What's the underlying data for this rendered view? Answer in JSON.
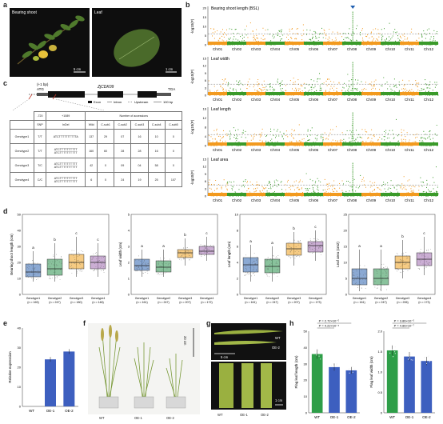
{
  "panels": {
    "a": "a",
    "b": "b",
    "c": "c",
    "d": "d",
    "e": "e",
    "f": "f",
    "g": "g",
    "h": "h"
  },
  "a": {
    "photo1_label": "Bearing shoot",
    "photo2_label": "Leaf",
    "scale1": "5 cm",
    "scale2": "1 cm",
    "colors": {
      "background": "#111111",
      "leaf": "#4f7a2c",
      "fruit": "#e8c23a"
    }
  },
  "b": {
    "chromosomes": [
      "Chr01",
      "Chr02",
      "Chr03",
      "Chr04",
      "Chr05",
      "Chr06",
      "Chr07",
      "Chr08",
      "Chr09",
      "Chr10",
      "Chr11",
      "Chr12"
    ],
    "ylabel": "-log10(P)",
    "marker_icon": "triangle-down-icon",
    "colors": {
      "odd": "#f29a1f",
      "even": "#3a9a2a",
      "marker": "#1f5fb0"
    },
    "tracks": [
      {
        "title": "Bearing shoot length (BSL)",
        "yticks": [
          "0",
          "5",
          "10",
          "15",
          "20"
        ]
      },
      {
        "title": "Leaf width",
        "yticks": [
          "0",
          "3",
          "6",
          "9",
          "12",
          "15"
        ]
      },
      {
        "title": "Leaf length",
        "yticks": [
          "0",
          "4",
          "8",
          "12",
          "16"
        ]
      },
      {
        "title": "Leaf area",
        "yticks": [
          "0",
          "3",
          "6",
          "9",
          "12",
          "15"
        ]
      }
    ]
  },
  "c": {
    "tss": "(+1 bp)",
    "atg": "ATG",
    "gene": "ZjCDK09",
    "tga": "TGA",
    "legend": {
      "exon": "Exon",
      "intron": "Intron",
      "upstream": "Upstream",
      "scale": "100 bp"
    },
    "table": {
      "top_headers": [
        "-720",
        "+1089",
        "Number of accessions"
      ],
      "headers": [
        "",
        "SNP",
        "InDel",
        "Wild",
        "C-sub1",
        "C-sub2",
        "C-sub3",
        "C-sub4",
        "C-sub5"
      ],
      "rows": [
        [
          "Genotype1",
          "T/T",
          "ATCTTTTTTTTTTA",
          "137",
          "29",
          "07",
          "16",
          "10",
          "0"
        ],
        [
          "Genotype2",
          "T/T",
          "ATCTTTTTTTTTT\nATCTTTTTTTTTT",
          "160",
          "60",
          "28",
          "28",
          "16",
          "0"
        ],
        [
          "Genotype3",
          "T/C",
          "ATCTTTTTTTTTT\nATCTTTTTTTTTT",
          "42",
          "0",
          "09",
          "04",
          "58",
          "0"
        ],
        [
          "Genotype4",
          "C/C",
          "ATCTTTTTTTTTT\nATCTTTTTTTTTT",
          "6",
          "0",
          "24",
          "19",
          "25",
          "107"
        ]
      ]
    }
  },
  "d": {
    "genotypes": [
      "Genotype1",
      "Genotype2",
      "Genotype3",
      "Genotype4"
    ],
    "colors": [
      "#3d6fb6",
      "#3b9a5a",
      "#f0a830",
      "#a878b8"
    ],
    "plots": [
      {
        "ylabel": "Bearing shoot length (cm)",
        "ylim": [
          0,
          50
        ],
        "yticks": [
          "0",
          "10",
          "20",
          "30",
          "40",
          "50"
        ],
        "letters": [
          "a",
          "b",
          "c",
          "c"
        ],
        "n": [
          "(n = 169)",
          "(n = 247)",
          "(n = 180)",
          "(n = 148)"
        ],
        "boxes": [
          [
            8,
            11,
            14,
            19,
            27
          ],
          [
            8,
            12,
            16,
            22,
            32
          ],
          [
            11,
            16,
            20,
            25,
            36
          ],
          [
            11,
            16,
            20,
            24,
            32
          ]
        ]
      },
      {
        "ylabel": "Leaf width (cm)",
        "ylim": [
          0,
          5
        ],
        "yticks": [
          "0",
          "1",
          "2",
          "3",
          "4",
          "5"
        ],
        "letters": [
          "a",
          "a",
          "b",
          "c"
        ],
        "n": [
          "(n = 161)",
          "(n = 247)",
          "(n = 207)",
          "(n = 172)"
        ],
        "boxes": [
          [
            1.1,
            1.5,
            1.8,
            2.2,
            2.8
          ],
          [
            1.1,
            1.4,
            1.7,
            2.1,
            2.8
          ],
          [
            1.8,
            2.3,
            2.6,
            2.8,
            3.5
          ],
          [
            2.1,
            2.5,
            2.7,
            3.0,
            3.6
          ]
        ]
      },
      {
        "ylabel": "Leaf length (cm)",
        "ylim": [
          0,
          10
        ],
        "yticks": [
          "0",
          "2",
          "4",
          "6",
          "8",
          "10"
        ],
        "letters": [
          "a",
          "a",
          "b",
          "c"
        ],
        "n": [
          "(n = 161)",
          "(n = 247)",
          "(n = 207)",
          "(n = 173)"
        ],
        "boxes": [
          [
            1.6,
            2.8,
            3.7,
            4.6,
            6.2
          ],
          [
            1.6,
            2.7,
            3.5,
            4.4,
            6.0
          ],
          [
            3.6,
            4.9,
            5.7,
            6.4,
            7.8
          ],
          [
            4.2,
            5.3,
            6.1,
            6.6,
            8.0
          ]
        ]
      },
      {
        "ylabel": "Leaf area (cm2)",
        "ylim": [
          0,
          25
        ],
        "yticks": [
          "0",
          "5",
          "10",
          "15",
          "20",
          "25"
        ],
        "letters": [
          "a",
          "a",
          "b",
          "c"
        ],
        "n": [
          "(n = 161)",
          "(n = 247)",
          "(n = 206)",
          "(n = 173)"
        ],
        "boxes": [
          [
            1,
            3,
            5,
            8,
            14
          ],
          [
            1,
            3,
            5,
            8,
            14
          ],
          [
            5,
            8,
            10,
            12,
            17
          ],
          [
            6,
            9,
            11,
            13,
            18
          ]
        ]
      }
    ]
  },
  "e": {
    "ylabel": "Relative expression",
    "categories": [
      "WT",
      "OE-1",
      "OE-2"
    ],
    "values": [
      0,
      24,
      28
    ],
    "ylim": [
      0,
      40
    ],
    "yticks": [
      "0",
      "10",
      "20",
      "30",
      "40"
    ],
    "color": "#3d5fbf"
  },
  "f": {
    "labels": [
      "WT",
      "OE-1",
      "OE-2"
    ],
    "scale": "20 cm"
  },
  "g": {
    "top_labels": [
      "WT",
      "OE-2"
    ],
    "top_scale": "5 cm",
    "labels": [
      "WT",
      "OE-1",
      "OE-2"
    ],
    "bottom_scale": "1 cm"
  },
  "h": {
    "plots": [
      {
        "ylabel": "Flag leaf length (cm)",
        "ylim": [
          0,
          50
        ],
        "yticks": [
          "0",
          "10",
          "20",
          "30",
          "40",
          "50"
        ],
        "categories": [
          "WT",
          "OE-1",
          "OE-2"
        ],
        "values": [
          36,
          28,
          26
        ],
        "colors": [
          "#2e9e48",
          "#3d5fbf",
          "#3d5fbf"
        ],
        "pvals": [
          "P = 2.72×10⁻⁵",
          "P = 4.22×10⁻⁴"
        ]
      },
      {
        "ylabel": "Flag leaf width (cm)",
        "ylim": [
          0,
          2.0
        ],
        "yticks": [
          "0",
          "0.5",
          "1.0",
          "1.5",
          "2.0"
        ],
        "categories": [
          "WT",
          "OE-1",
          "OE-2"
        ],
        "values": [
          1.53,
          1.38,
          1.27
        ],
        "colors": [
          "#2e9e48",
          "#3d5fbf",
          "#3d5fbf"
        ],
        "pvals": [
          "P = 3.86×10⁻⁵",
          "P = 4.86×10⁻⁷"
        ]
      }
    ]
  }
}
